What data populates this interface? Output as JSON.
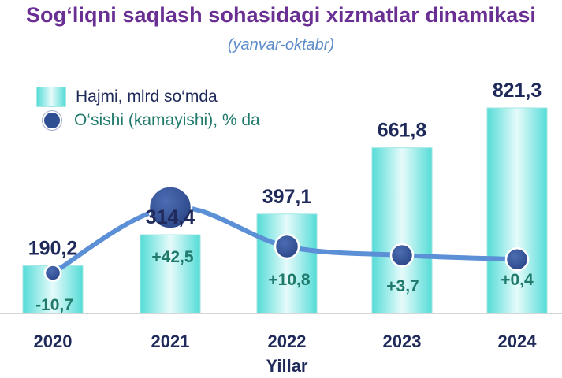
{
  "title": "Sog‘liqni saqlash sohasidagi xizmatlar dinamikasi",
  "subtitle": "(yanvar-oktabr)",
  "legend": {
    "bars": "Hajmi, mlrd so‘mda",
    "line": "O‘sishi (kamayishi), % da"
  },
  "colors": {
    "title": "#6a2f93",
    "subtitle": "#5b8bc9",
    "bar_edge": "#55dcd7",
    "bar_center": "#e6fbfb",
    "line": "#5b8fd6",
    "marker": "#2f4f94",
    "value_label": "#1f2a5a",
    "growth_label": "#1f7a6c"
  },
  "chart_data": {
    "type": "bar",
    "xlabel": "Yillar",
    "categories": [
      "2020",
      "2021",
      "2022",
      "2023",
      "2024"
    ],
    "series": [
      {
        "name": "Hajmi, mlrd so‘mda",
        "type": "bar",
        "values": [
          190.2,
          314.4,
          397.1,
          661.8,
          821.3
        ],
        "labels": [
          "190,2",
          "314,4",
          "397,1",
          "661,8",
          "821,3"
        ]
      },
      {
        "name": "O‘sishi (kamayishi), % da",
        "type": "line",
        "values": [
          -10.7,
          42.5,
          10.8,
          3.7,
          0.4
        ],
        "labels": [
          "-10,7",
          "+42,5",
          "+10,8",
          "+3,7",
          "+0,4"
        ]
      }
    ]
  }
}
